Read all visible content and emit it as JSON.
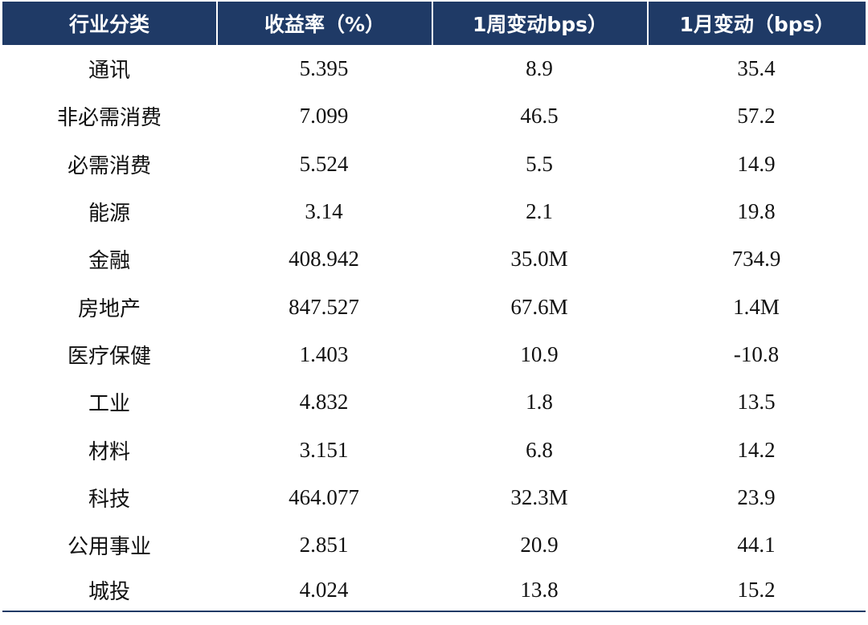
{
  "chart_data": {
    "type": "table",
    "columns": [
      "行业分类",
      "收益率（%）",
      "1周变动bps）",
      "1月变动（bps）"
    ],
    "rows": [
      {
        "category": "通讯",
        "yield": "5.395",
        "week_change": "8.9",
        "month_change": "35.4"
      },
      {
        "category": "非必需消费",
        "yield": "7.099",
        "week_change": "46.5",
        "month_change": "57.2"
      },
      {
        "category": "必需消费",
        "yield": "5.524",
        "week_change": "5.5",
        "month_change": "14.9"
      },
      {
        "category": "能源",
        "yield": "3.14",
        "week_change": "2.1",
        "month_change": "19.8"
      },
      {
        "category": "金融",
        "yield": "408.942",
        "week_change": "35.0M",
        "month_change": "734.9"
      },
      {
        "category": "房地产",
        "yield": "847.527",
        "week_change": "67.6M",
        "month_change": "1.4M"
      },
      {
        "category": "医疗保健",
        "yield": "1.403",
        "week_change": "10.9",
        "month_change": "-10.8"
      },
      {
        "category": "工业",
        "yield": "4.832",
        "week_change": "1.8",
        "month_change": "13.5"
      },
      {
        "category": "材料",
        "yield": "3.151",
        "week_change": "6.8",
        "month_change": "14.2"
      },
      {
        "category": "科技",
        "yield": "464.077",
        "week_change": "32.3M",
        "month_change": "23.9"
      },
      {
        "category": "公用事业",
        "yield": "2.851",
        "week_change": "20.9",
        "month_change": "44.1"
      },
      {
        "category": "城投",
        "yield": "4.024",
        "week_change": "13.8",
        "month_change": "15.2"
      }
    ]
  },
  "colors": {
    "header_bg": "#1f3a66",
    "header_text": "#ffffff",
    "body_text": "#111111"
  }
}
